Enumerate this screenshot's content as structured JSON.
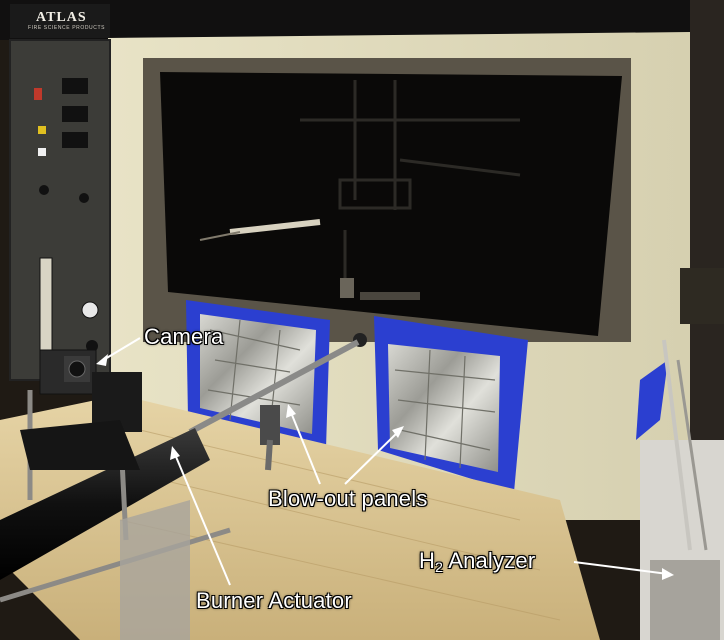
{
  "photo": {
    "brand_logo": "ATLAS",
    "brand_subtitle": "FIRE SCIENCE PRODUCTS"
  },
  "labels": {
    "camera": "Camera",
    "blowout_panels": "Blow-out panels",
    "h2_analyzer_prefix": "H",
    "h2_analyzer_subscript": "2",
    "h2_analyzer_suffix": " Analyzer",
    "burner_actuator": "Burner Actuator"
  },
  "colors": {
    "chamber_panel": "#e4dfc2",
    "window_dark": "#0b0a08",
    "tape_blue": "#2b3fd0",
    "foil": "#b9b9b2",
    "wood_table": "#d9c69a",
    "control_panel": "#3a3a36",
    "label_text": "#ffffff"
  }
}
